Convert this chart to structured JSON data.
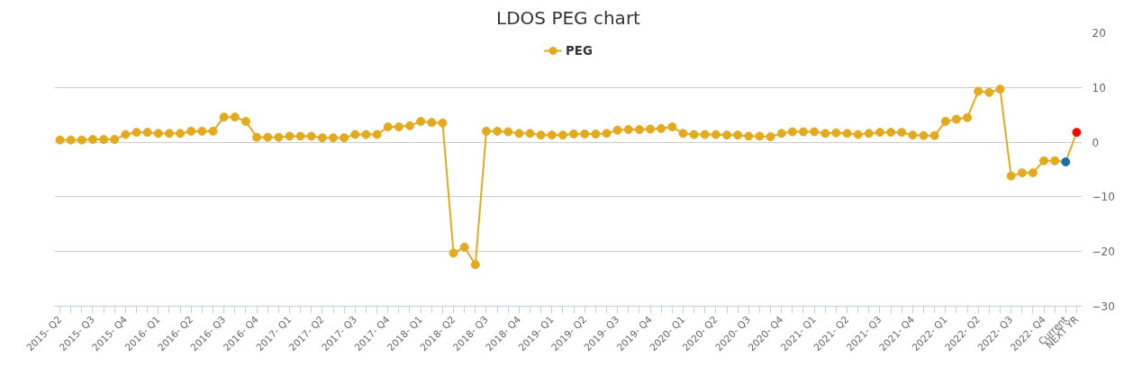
{
  "chart_data": {
    "type": "line",
    "title": "LDOS PEG chart",
    "categories": [
      "2015- Q2",
      null,
      null,
      "2015- Q3",
      null,
      null,
      "2015- Q4",
      null,
      null,
      "2016- Q1",
      null,
      null,
      "2016- Q2",
      null,
      null,
      "2016- Q3",
      null,
      null,
      "2016- Q4",
      null,
      null,
      "2017- Q1",
      null,
      null,
      "2017- Q2",
      null,
      null,
      "2017- Q3",
      null,
      null,
      "2017- Q4",
      null,
      null,
      "2018- Q1",
      null,
      null,
      "2018- Q2",
      null,
      null,
      "2018- Q3",
      null,
      null,
      "2018- Q4",
      null,
      null,
      "2019- Q1",
      null,
      null,
      "2019- Q2",
      null,
      null,
      "2019- Q3",
      null,
      null,
      "2019- Q4",
      null,
      null,
      "2020- Q1",
      null,
      null,
      "2020- Q2",
      null,
      null,
      "2020- Q3",
      null,
      null,
      "2020- Q4",
      null,
      null,
      "2021- Q1",
      null,
      null,
      "2021- Q2",
      null,
      null,
      "2021- Q3",
      null,
      null,
      "2021- Q4",
      null,
      null,
      "2022- Q1",
      null,
      null,
      "2022- Q2",
      null,
      null,
      "2022- Q3",
      null,
      null,
      "2022- Q4",
      null,
      "Current",
      "NEXT YR"
    ],
    "series": [
      {
        "name": "PEG",
        "color": "#e3aa1e",
        "colors": [
          "#e3aa1e",
          "#e3aa1e",
          "#e3aa1e",
          "#e3aa1e",
          "#e3aa1e",
          "#e3aa1e",
          "#e3aa1e",
          "#e3aa1e",
          "#e3aa1e",
          "#e3aa1e",
          "#e3aa1e",
          "#e3aa1e",
          "#e3aa1e",
          "#e3aa1e",
          "#e3aa1e",
          "#e3aa1e",
          "#e3aa1e",
          "#e3aa1e",
          "#e3aa1e",
          "#e3aa1e",
          "#e3aa1e",
          "#e3aa1e",
          "#e3aa1e",
          "#e3aa1e",
          "#e3aa1e",
          "#e3aa1e",
          "#e3aa1e",
          "#e3aa1e",
          "#e3aa1e",
          "#e3aa1e",
          "#e3aa1e",
          "#e3aa1e",
          "#e3aa1e",
          "#e3aa1e",
          "#e3aa1e",
          "#e3aa1e",
          "#e3aa1e",
          "#e3aa1e",
          "#e3aa1e",
          "#e3aa1e",
          "#e3aa1e",
          "#e3aa1e",
          "#e3aa1e",
          "#e3aa1e",
          "#e3aa1e",
          "#e3aa1e",
          "#e3aa1e",
          "#e3aa1e",
          "#e3aa1e",
          "#e3aa1e",
          "#e3aa1e",
          "#e3aa1e",
          "#e3aa1e",
          "#e3aa1e",
          "#e3aa1e",
          "#e3aa1e",
          "#e3aa1e",
          "#e3aa1e",
          "#e3aa1e",
          "#e3aa1e",
          "#e3aa1e",
          "#e3aa1e",
          "#e3aa1e",
          "#e3aa1e",
          "#e3aa1e",
          "#e3aa1e",
          "#e3aa1e",
          "#e3aa1e",
          "#e3aa1e",
          "#e3aa1e",
          "#e3aa1e",
          "#e3aa1e",
          "#e3aa1e",
          "#e3aa1e",
          "#e3aa1e",
          "#e3aa1e",
          "#e3aa1e",
          "#e3aa1e",
          "#e3aa1e",
          "#e3aa1e",
          "#e3aa1e",
          "#e3aa1e",
          "#e3aa1e",
          "#e3aa1e",
          "#e3aa1e",
          "#e3aa1e",
          "#e3aa1e",
          "#e3aa1e",
          "#e3aa1e",
          "#e3aa1e",
          "#e3aa1e",
          "#e3aa1e",
          "#1a6fa8",
          "#ff0000"
        ],
        "values": [
          0.4,
          0.4,
          0.4,
          0.5,
          0.5,
          0.5,
          1.4,
          1.8,
          1.8,
          1.6,
          1.6,
          1.6,
          2.0,
          2.0,
          2.0,
          4.6,
          4.6,
          3.8,
          0.9,
          0.9,
          0.9,
          1.1,
          1.1,
          1.1,
          0.8,
          0.8,
          0.8,
          1.4,
          1.4,
          1.4,
          2.8,
          2.8,
          3.0,
          3.8,
          3.6,
          3.5,
          -20.3,
          -19.2,
          -22.4,
          2.0,
          2.0,
          1.9,
          1.6,
          1.6,
          1.3,
          1.3,
          1.3,
          1.5,
          1.5,
          1.5,
          1.6,
          2.2,
          2.3,
          2.3,
          2.4,
          2.5,
          2.8,
          1.6,
          1.4,
          1.4,
          1.4,
          1.3,
          1.3,
          1.1,
          1.1,
          1.0,
          1.6,
          1.9,
          1.9,
          1.9,
          1.6,
          1.7,
          1.6,
          1.4,
          1.6,
          1.8,
          1.8,
          1.8,
          1.3,
          1.2,
          1.2,
          3.8,
          4.2,
          4.5,
          9.3,
          9.1,
          9.7,
          -6.2,
          -5.6,
          -5.6,
          -3.4,
          -3.4,
          -3.6,
          1.8
        ]
      }
    ],
    "ylim": [
      -30,
      20
    ],
    "yticks": [
      -30,
      -20,
      -10,
      0,
      10,
      20
    ],
    "grid": "y",
    "legend": "top",
    "marker": "circle",
    "line_style": "solid"
  }
}
